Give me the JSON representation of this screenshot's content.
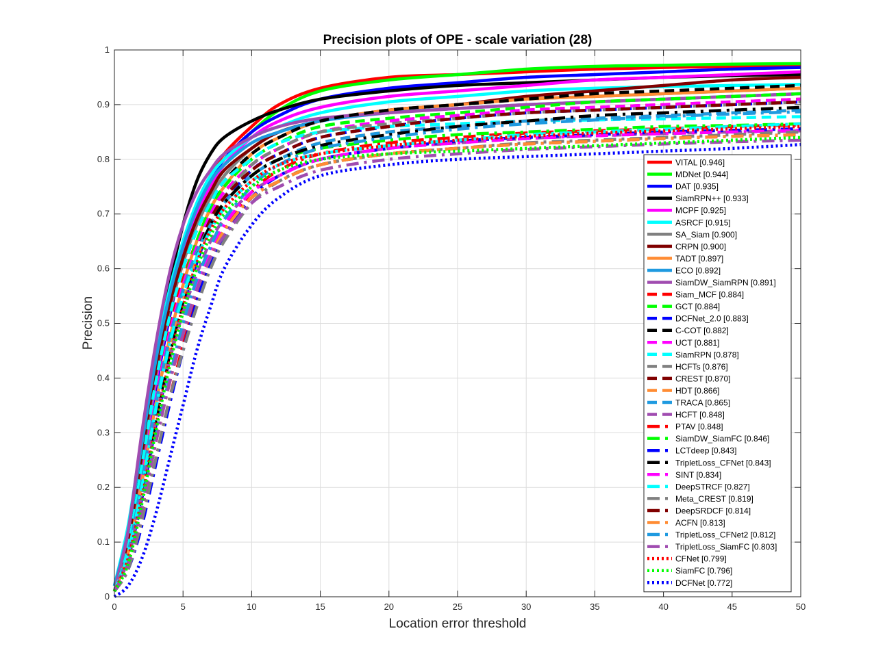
{
  "chart_data": {
    "type": "line",
    "title": "Precision plots of OPE - scale variation (28)",
    "xlabel": "Location error threshold",
    "ylabel": "Precision",
    "xlim": [
      0,
      50
    ],
    "ylim": [
      0,
      1
    ],
    "grid": true,
    "legend_position": "bottom-right",
    "x_ticks": [
      0,
      5,
      10,
      15,
      20,
      25,
      30,
      35,
      40,
      45,
      50
    ],
    "y_ticks": [
      0,
      0.1,
      0.2,
      0.3,
      0.4,
      0.5,
      0.6,
      0.7,
      0.8,
      0.9,
      1
    ],
    "x_points": [
      0,
      1,
      2,
      3,
      4,
      5,
      6,
      7,
      8,
      10,
      12,
      15,
      20,
      25,
      30,
      35,
      40,
      45,
      50
    ],
    "series": [
      {
        "name": "VITAL",
        "score": "0.946",
        "label": "VITAL [0.946]",
        "color": "#ff0000",
        "style": "solid",
        "values": [
          0.01,
          0.09,
          0.23,
          0.38,
          0.52,
          0.63,
          0.71,
          0.77,
          0.81,
          0.86,
          0.9,
          0.93,
          0.95,
          0.955,
          0.96,
          0.965,
          0.968,
          0.97,
          0.972
        ]
      },
      {
        "name": "MDNet",
        "score": "0.944",
        "label": "MDNet [0.944]",
        "color": "#00ff00",
        "style": "solid",
        "values": [
          0.01,
          0.1,
          0.25,
          0.4,
          0.53,
          0.63,
          0.7,
          0.76,
          0.8,
          0.85,
          0.89,
          0.925,
          0.945,
          0.955,
          0.965,
          0.97,
          0.972,
          0.974,
          0.975
        ]
      },
      {
        "name": "DAT",
        "score": "0.935",
        "label": "DAT [0.935]",
        "color": "#0000ff",
        "style": "solid",
        "values": [
          0.01,
          0.09,
          0.23,
          0.38,
          0.51,
          0.62,
          0.7,
          0.76,
          0.8,
          0.85,
          0.88,
          0.91,
          0.93,
          0.94,
          0.95,
          0.955,
          0.96,
          0.965,
          0.968
        ]
      },
      {
        "name": "SiamRPN++",
        "score": "0.933",
        "label": "SiamRPN++ [0.933]",
        "color": "#000000",
        "style": "solid",
        "values": [
          0.01,
          0.1,
          0.27,
          0.43,
          0.57,
          0.68,
          0.76,
          0.81,
          0.84,
          0.87,
          0.89,
          0.91,
          0.925,
          0.935,
          0.94,
          0.945,
          0.95,
          0.953,
          0.955
        ]
      },
      {
        "name": "MCPF",
        "score": "0.925",
        "label": "MCPF [0.925]",
        "color": "#ff00ff",
        "style": "solid",
        "values": [
          0.01,
          0.09,
          0.24,
          0.39,
          0.52,
          0.62,
          0.7,
          0.75,
          0.79,
          0.84,
          0.87,
          0.895,
          0.915,
          0.925,
          0.935,
          0.945,
          0.95,
          0.955,
          0.96
        ]
      },
      {
        "name": "ASRCF",
        "score": "0.915",
        "label": "ASRCF [0.915]",
        "color": "#00ffff",
        "style": "solid",
        "values": [
          0.02,
          0.13,
          0.29,
          0.44,
          0.56,
          0.65,
          0.72,
          0.77,
          0.8,
          0.84,
          0.86,
          0.885,
          0.905,
          0.915,
          0.925,
          0.93,
          0.933,
          0.935,
          0.937
        ]
      },
      {
        "name": "SA_Siam",
        "score": "0.900",
        "label": "SA_Siam [0.900]",
        "color": "#808080",
        "style": "solid",
        "values": [
          0.01,
          0.1,
          0.25,
          0.4,
          0.52,
          0.61,
          0.68,
          0.73,
          0.77,
          0.82,
          0.85,
          0.87,
          0.89,
          0.9,
          0.91,
          0.915,
          0.92,
          0.925,
          0.93
        ]
      },
      {
        "name": "CRPN",
        "score": "0.900",
        "label": "CRPN [0.900]",
        "color": "#800000",
        "style": "solid",
        "values": [
          0.01,
          0.1,
          0.26,
          0.41,
          0.53,
          0.62,
          0.69,
          0.74,
          0.78,
          0.82,
          0.85,
          0.87,
          0.89,
          0.9,
          0.915,
          0.925,
          0.935,
          0.945,
          0.95
        ]
      },
      {
        "name": "TADT",
        "score": "0.897",
        "label": "TADT [0.897]",
        "color": "#ff8c33",
        "style": "solid",
        "values": [
          0.01,
          0.08,
          0.21,
          0.35,
          0.47,
          0.57,
          0.65,
          0.71,
          0.75,
          0.81,
          0.84,
          0.87,
          0.89,
          0.9,
          0.91,
          0.915,
          0.92,
          0.925,
          0.93
        ]
      },
      {
        "name": "ECO",
        "score": "0.892",
        "label": "ECO [0.892]",
        "color": "#1f9ae0",
        "style": "solid",
        "values": [
          0.02,
          0.12,
          0.28,
          0.43,
          0.55,
          0.64,
          0.71,
          0.76,
          0.79,
          0.83,
          0.85,
          0.87,
          0.885,
          0.893,
          0.9,
          0.905,
          0.91,
          0.915,
          0.92
        ]
      },
      {
        "name": "SiamDW_SiamRPN",
        "score": "0.891",
        "label": "SiamDW_SiamRPN [0.891]",
        "color": "#a04cb0",
        "style": "solid",
        "values": [
          0.01,
          0.12,
          0.3,
          0.46,
          0.59,
          0.68,
          0.74,
          0.78,
          0.81,
          0.84,
          0.86,
          0.875,
          0.885,
          0.893,
          0.9,
          0.905,
          0.91,
          0.915,
          0.92
        ]
      },
      {
        "name": "Siam_MCF",
        "score": "0.884",
        "label": "Siam_MCF [0.884]",
        "color": "#ff0000",
        "style": "dashed",
        "values": [
          0.01,
          0.09,
          0.23,
          0.37,
          0.49,
          0.58,
          0.65,
          0.7,
          0.74,
          0.79,
          0.82,
          0.85,
          0.87,
          0.88,
          0.89,
          0.895,
          0.9,
          0.905,
          0.91
        ]
      },
      {
        "name": "GCT",
        "score": "0.884",
        "label": "GCT [0.884]",
        "color": "#00ff00",
        "style": "dashed",
        "values": [
          0.01,
          0.08,
          0.21,
          0.35,
          0.47,
          0.57,
          0.65,
          0.71,
          0.75,
          0.8,
          0.83,
          0.86,
          0.875,
          0.885,
          0.895,
          0.905,
          0.91,
          0.915,
          0.92
        ]
      },
      {
        "name": "DCFNet_2.0",
        "score": "0.883",
        "label": "DCFNet_2.0 [0.883]",
        "color": "#0000ff",
        "style": "dashed",
        "values": [
          0.01,
          0.07,
          0.18,
          0.31,
          0.43,
          0.53,
          0.61,
          0.68,
          0.72,
          0.78,
          0.81,
          0.84,
          0.86,
          0.875,
          0.885,
          0.89,
          0.895,
          0.9,
          0.905
        ]
      },
      {
        "name": "C-COT",
        "score": "0.882",
        "label": "C-COT [0.882]",
        "color": "#000000",
        "style": "dashed",
        "values": [
          0.01,
          0.09,
          0.24,
          0.39,
          0.51,
          0.6,
          0.67,
          0.72,
          0.76,
          0.81,
          0.84,
          0.87,
          0.89,
          0.9,
          0.91,
          0.92,
          0.925,
          0.93,
          0.935
        ]
      },
      {
        "name": "UCT",
        "score": "0.881",
        "label": "UCT [0.881]",
        "color": "#ff00ff",
        "style": "dashed",
        "values": [
          0.01,
          0.08,
          0.22,
          0.36,
          0.48,
          0.57,
          0.64,
          0.7,
          0.74,
          0.79,
          0.82,
          0.85,
          0.87,
          0.88,
          0.89,
          0.895,
          0.9,
          0.905,
          0.91
        ]
      },
      {
        "name": "SiamRPN",
        "score": "0.878",
        "label": "SiamRPN [0.878]",
        "color": "#00ffff",
        "style": "dashed",
        "values": [
          0.01,
          0.09,
          0.24,
          0.39,
          0.51,
          0.6,
          0.67,
          0.72,
          0.76,
          0.8,
          0.83,
          0.85,
          0.86,
          0.865,
          0.87,
          0.872,
          0.874,
          0.876,
          0.878
        ]
      },
      {
        "name": "HCFTs",
        "score": "0.876",
        "label": "HCFTs [0.876]",
        "color": "#808080",
        "style": "dashed",
        "values": [
          0.01,
          0.07,
          0.19,
          0.32,
          0.44,
          0.54,
          0.62,
          0.68,
          0.73,
          0.79,
          0.82,
          0.85,
          0.865,
          0.875,
          0.885,
          0.89,
          0.895,
          0.9,
          0.905
        ]
      },
      {
        "name": "CREST",
        "score": "0.870",
        "label": "CREST [0.870]",
        "color": "#800000",
        "style": "dashed",
        "values": [
          0.01,
          0.08,
          0.21,
          0.35,
          0.47,
          0.56,
          0.63,
          0.69,
          0.73,
          0.78,
          0.81,
          0.84,
          0.86,
          0.875,
          0.885,
          0.89,
          0.895,
          0.9,
          0.905
        ]
      },
      {
        "name": "HDT",
        "score": "0.866",
        "label": "HDT [0.866]",
        "color": "#ff8c33",
        "style": "dashed",
        "values": [
          0.01,
          0.08,
          0.21,
          0.35,
          0.46,
          0.55,
          0.62,
          0.68,
          0.72,
          0.77,
          0.8,
          0.83,
          0.85,
          0.86,
          0.87,
          0.875,
          0.88,
          0.885,
          0.89
        ]
      },
      {
        "name": "TRACA",
        "score": "0.865",
        "label": "TRACA [0.865]",
        "color": "#1f9ae0",
        "style": "dashed",
        "values": [
          0.01,
          0.08,
          0.21,
          0.35,
          0.47,
          0.56,
          0.63,
          0.68,
          0.72,
          0.77,
          0.8,
          0.83,
          0.85,
          0.86,
          0.87,
          0.875,
          0.88,
          0.885,
          0.89
        ]
      },
      {
        "name": "HCFT",
        "score": "0.848",
        "label": "HCFT [0.848]",
        "color": "#a04cb0",
        "style": "dashed",
        "values": [
          0.01,
          0.07,
          0.19,
          0.32,
          0.43,
          0.52,
          0.59,
          0.65,
          0.69,
          0.74,
          0.77,
          0.8,
          0.82,
          0.83,
          0.838,
          0.843,
          0.847,
          0.85,
          0.852
        ]
      },
      {
        "name": "PTAV",
        "score": "0.848",
        "label": "PTAV [0.848]",
        "color": "#ff0000",
        "style": "dashdot",
        "values": [
          0.01,
          0.05,
          0.14,
          0.25,
          0.36,
          0.46,
          0.55,
          0.62,
          0.67,
          0.74,
          0.78,
          0.81,
          0.83,
          0.84,
          0.848,
          0.852,
          0.856,
          0.86,
          0.863
        ]
      },
      {
        "name": "SiamDW_SiamFC",
        "score": "0.846",
        "label": "SiamDW_SiamFC [0.846]",
        "color": "#00ff00",
        "style": "dashdot",
        "values": [
          0.01,
          0.07,
          0.19,
          0.32,
          0.44,
          0.54,
          0.62,
          0.68,
          0.72,
          0.77,
          0.8,
          0.82,
          0.835,
          0.845,
          0.85,
          0.855,
          0.86,
          0.862,
          0.865
        ]
      },
      {
        "name": "LCTdeep",
        "score": "0.843",
        "label": "LCTdeep [0.843]",
        "color": "#0000ff",
        "style": "dashdot",
        "values": [
          0.01,
          0.05,
          0.13,
          0.24,
          0.35,
          0.45,
          0.54,
          0.61,
          0.66,
          0.73,
          0.77,
          0.8,
          0.82,
          0.833,
          0.84,
          0.845,
          0.85,
          0.853,
          0.856
        ]
      },
      {
        "name": "TripletLoss_CFNet",
        "score": "0.843",
        "label": "TripletLoss_CFNet [0.843]",
        "color": "#000000",
        "style": "dashdot",
        "values": [
          0.01,
          0.07,
          0.19,
          0.32,
          0.44,
          0.54,
          0.62,
          0.68,
          0.72,
          0.77,
          0.8,
          0.825,
          0.845,
          0.86,
          0.87,
          0.88,
          0.885,
          0.89,
          0.895
        ]
      },
      {
        "name": "SINT",
        "score": "0.834",
        "label": "SINT [0.834]",
        "color": "#ff00ff",
        "style": "dashdot",
        "values": [
          0.01,
          0.06,
          0.16,
          0.28,
          0.39,
          0.49,
          0.57,
          0.63,
          0.68,
          0.74,
          0.77,
          0.8,
          0.82,
          0.83,
          0.838,
          0.843,
          0.847,
          0.85,
          0.853
        ]
      },
      {
        "name": "DeepSTRCF",
        "score": "0.827",
        "label": "DeepSTRCF [0.827]",
        "color": "#00ffff",
        "style": "dashdot",
        "values": [
          0.01,
          0.08,
          0.2,
          0.34,
          0.46,
          0.55,
          0.62,
          0.67,
          0.71,
          0.76,
          0.79,
          0.81,
          0.825,
          0.835,
          0.845,
          0.85,
          0.855,
          0.86,
          0.865
        ]
      },
      {
        "name": "Meta_CREST",
        "score": "0.819",
        "label": "Meta_CREST [0.819]",
        "color": "#808080",
        "style": "dashdot",
        "values": [
          0.01,
          0.05,
          0.14,
          0.25,
          0.36,
          0.45,
          0.53,
          0.6,
          0.65,
          0.72,
          0.76,
          0.79,
          0.81,
          0.82,
          0.83,
          0.835,
          0.84,
          0.845,
          0.85
        ]
      },
      {
        "name": "DeepSRDCF",
        "score": "0.814",
        "label": "DeepSRDCF [0.814]",
        "color": "#800000",
        "style": "dashdot",
        "values": [
          0.01,
          0.06,
          0.16,
          0.28,
          0.39,
          0.48,
          0.56,
          0.62,
          0.67,
          0.73,
          0.76,
          0.79,
          0.81,
          0.82,
          0.828,
          0.833,
          0.838,
          0.842,
          0.845
        ]
      },
      {
        "name": "ACFN",
        "score": "0.813",
        "label": "ACFN [0.813]",
        "color": "#ff8c33",
        "style": "dashdot",
        "values": [
          0.01,
          0.06,
          0.16,
          0.28,
          0.39,
          0.48,
          0.56,
          0.62,
          0.67,
          0.73,
          0.76,
          0.79,
          0.81,
          0.82,
          0.828,
          0.833,
          0.838,
          0.842,
          0.845
        ]
      },
      {
        "name": "TripletLoss_CFNet2",
        "score": "0.812",
        "label": "TripletLoss_CFNet2 [0.812]",
        "color": "#1f9ae0",
        "style": "dashdot",
        "values": [
          0.01,
          0.06,
          0.17,
          0.29,
          0.4,
          0.5,
          0.58,
          0.64,
          0.69,
          0.75,
          0.79,
          0.82,
          0.84,
          0.855,
          0.865,
          0.872,
          0.878,
          0.883,
          0.887
        ]
      },
      {
        "name": "TripletLoss_SiamFC",
        "score": "0.803",
        "label": "TripletLoss_SiamFC [0.803]",
        "color": "#a04cb0",
        "style": "dashdot",
        "values": [
          0.01,
          0.06,
          0.16,
          0.28,
          0.39,
          0.48,
          0.56,
          0.62,
          0.66,
          0.72,
          0.75,
          0.78,
          0.8,
          0.81,
          0.818,
          0.823,
          0.828,
          0.832,
          0.835
        ]
      },
      {
        "name": "CFNet",
        "score": "0.799",
        "label": "CFNet [0.799]",
        "color": "#ff0000",
        "style": "dotted",
        "values": [
          0.01,
          0.07,
          0.18,
          0.31,
          0.43,
          0.53,
          0.61,
          0.67,
          0.71,
          0.76,
          0.79,
          0.81,
          0.825,
          0.835,
          0.842,
          0.848,
          0.852,
          0.856,
          0.86
        ]
      },
      {
        "name": "SiamFC",
        "score": "0.796",
        "label": "SiamFC [0.796]",
        "color": "#00ff00",
        "style": "dotted",
        "values": [
          0.01,
          0.06,
          0.17,
          0.3,
          0.42,
          0.52,
          0.6,
          0.66,
          0.7,
          0.75,
          0.78,
          0.8,
          0.81,
          0.815,
          0.82,
          0.825,
          0.83,
          0.835,
          0.84
        ]
      },
      {
        "name": "DCFNet",
        "score": "0.772",
        "label": "DCFNet [0.772]",
        "color": "#0000ff",
        "style": "dotted",
        "values": [
          0.0,
          0.02,
          0.07,
          0.15,
          0.25,
          0.35,
          0.45,
          0.53,
          0.6,
          0.68,
          0.73,
          0.77,
          0.79,
          0.8,
          0.805,
          0.81,
          0.815,
          0.82,
          0.827
        ]
      }
    ]
  }
}
